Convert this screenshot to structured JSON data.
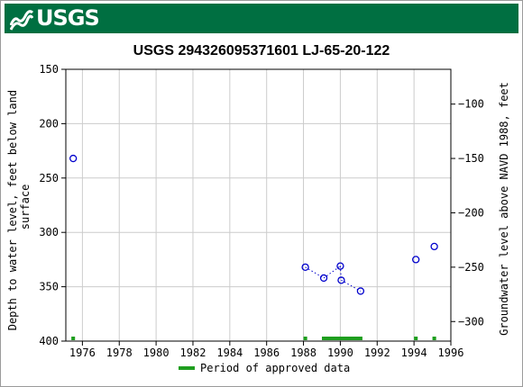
{
  "header": {
    "logo_text": "USGS",
    "logo_icon": "usgs-wave-icon",
    "banner_color": "#006f41"
  },
  "chart_data": {
    "type": "scatter",
    "title": "USGS 294326095371601 LJ-65-20-122",
    "ylabel_left_lines": [
      "Depth to water level, feet below land",
      "surface"
    ],
    "ylabel_right": "Groundwater level above NAVD 1988, feet",
    "x_ticks": [
      "1976",
      "1978",
      "1980",
      "1982",
      "1984",
      "1986",
      "1988",
      "1990",
      "1992",
      "1994",
      "1996"
    ],
    "x_tick_values": [
      1976,
      1978,
      1980,
      1982,
      1984,
      1986,
      1988,
      1990,
      1992,
      1994,
      1996
    ],
    "xlim": [
      1975.1,
      1996.0
    ],
    "y_left_ticks": [
      "150",
      "200",
      "250",
      "300",
      "350",
      "400"
    ],
    "y_left_tick_values": [
      150,
      200,
      250,
      300,
      350,
      400
    ],
    "ylim_left": [
      150,
      400
    ],
    "y_left_inverted": true,
    "y_right_ticks": [
      "−100",
      "−150",
      "−200",
      "−250",
      "−300"
    ],
    "y_right_tick_values": [
      -100,
      -150,
      -200,
      -250,
      -300
    ],
    "right_axis_offset": 82,
    "grid": true,
    "series": [
      {
        "color": "#0000cc",
        "points": [
          {
            "x": 1975.5,
            "y": 232
          },
          {
            "x": 1988.1,
            "y": 332
          },
          {
            "x": 1989.1,
            "y": 342
          },
          {
            "x": 1990.0,
            "y": 331
          },
          {
            "x": 1990.05,
            "y": 344
          },
          {
            "x": 1991.1,
            "y": 354
          },
          {
            "x": 1994.1,
            "y": 325
          },
          {
            "x": 1995.1,
            "y": 313
          }
        ],
        "dotted_segments": [
          [
            1,
            2
          ],
          [
            2,
            3
          ],
          [
            3,
            4
          ],
          [
            4,
            5
          ]
        ]
      }
    ],
    "approved_periods": [
      {
        "start": 1975.4,
        "end": 1975.6
      },
      {
        "start": 1988.0,
        "end": 1988.2
      },
      {
        "start": 1989.0,
        "end": 1991.2
      },
      {
        "start": 1994.0,
        "end": 1994.2
      },
      {
        "start": 1995.0,
        "end": 1995.2
      }
    ],
    "approved_color": "#1f9e1f",
    "legend": {
      "label": "Period of approved data",
      "placement": "bottom"
    }
  }
}
